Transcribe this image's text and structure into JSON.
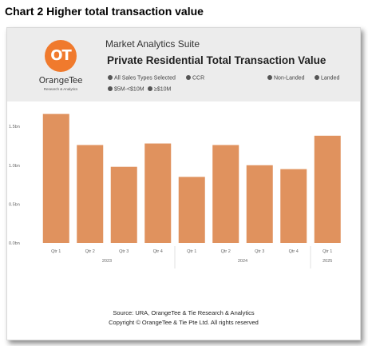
{
  "heading": "Chart 2 Higher total transaction value",
  "header": {
    "logo_mark": "OT",
    "logo_name": "OrangeTee",
    "logo_sub": "Research & Analytics",
    "suite": "Market Analytics Suite",
    "title": "Private Residential Total Transaction Value"
  },
  "legend": [
    {
      "label": "All Sales Types Selected"
    },
    {
      "label": "CCR"
    },
    {
      "label": "Non-Landed"
    },
    {
      "label": "Landed"
    },
    {
      "label": "$5M-<$10M"
    },
    {
      "label": "≥$10M"
    }
  ],
  "colors": {
    "bar": "#e0925e",
    "accent": "#f07a2d"
  },
  "chart_data": {
    "type": "bar",
    "categories": [
      "Qtr 1",
      "Qtr 2",
      "Qtr 3",
      "Qtr 4",
      "Qtr 1",
      "Qtr 2",
      "Qtr 3",
      "Qtr 4",
      "Qtr 1"
    ],
    "groups": [
      {
        "label": "2023",
        "count": 4
      },
      {
        "label": "2024",
        "count": 4
      },
      {
        "label": "2025",
        "count": 1
      }
    ],
    "values": [
      1.66,
      1.26,
      0.98,
      1.28,
      0.85,
      1.26,
      1.0,
      0.95,
      1.38
    ],
    "unit": "bn",
    "yticks": [
      0,
      0.5,
      1.0,
      1.5
    ],
    "ytick_labels": [
      "0.0bn",
      "0.5bn",
      "1.0bn",
      "1.5bn"
    ],
    "ylim": [
      0,
      1.8
    ],
    "grid": false
  },
  "footer": {
    "source": "Source: URA, OrangeTee & Tie Research & Analytics",
    "copyright": "Copyright © OrangeTee & Tie Pte Ltd. All rights reserved"
  }
}
